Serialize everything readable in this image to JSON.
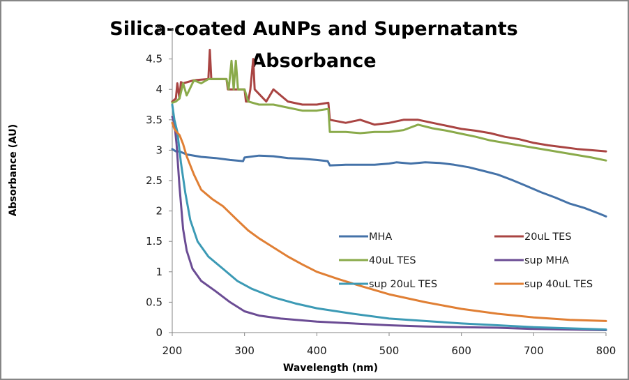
{
  "chart_data": {
    "type": "line",
    "title": "Silica-coated AuNPs and Supernatants Absorbance",
    "title_lines": [
      "Silica-coated AuNPs and Supernatants",
      "Absorbance"
    ],
    "xlabel": "Wavelength (nm)",
    "ylabel": "Absorbance (AU)",
    "xlim": [
      200,
      800
    ],
    "ylim": [
      0,
      5
    ],
    "x_ticks": [
      200,
      300,
      400,
      500,
      600,
      700,
      800
    ],
    "y_ticks": [
      0,
      0.5,
      1,
      1.5,
      2,
      2.5,
      3,
      3.5,
      4,
      4.5,
      5
    ],
    "x_tick_labels": [
      "200",
      "300",
      "400",
      "500",
      "600",
      "700",
      "800"
    ],
    "y_tick_labels": [
      "0",
      "0.5",
      "1",
      "1.5",
      "2",
      "2.5",
      "3",
      "3.5",
      "4",
      "4.5",
      "5"
    ],
    "grid": false,
    "legend_position": "center-right",
    "series": [
      {
        "name": "MHA",
        "color": "#4472a8",
        "points": [
          [
            200,
            3.02
          ],
          [
            205,
            2.98
          ],
          [
            210,
            2.98
          ],
          [
            220,
            2.93
          ],
          [
            240,
            2.89
          ],
          [
            260,
            2.87
          ],
          [
            280,
            2.84
          ],
          [
            298,
            2.82
          ],
          [
            300,
            2.88
          ],
          [
            320,
            2.91
          ],
          [
            340,
            2.9
          ],
          [
            360,
            2.87
          ],
          [
            380,
            2.86
          ],
          [
            400,
            2.84
          ],
          [
            415,
            2.82
          ],
          [
            418,
            2.75
          ],
          [
            440,
            2.76
          ],
          [
            460,
            2.76
          ],
          [
            480,
            2.76
          ],
          [
            500,
            2.78
          ],
          [
            510,
            2.8
          ],
          [
            530,
            2.78
          ],
          [
            550,
            2.8
          ],
          [
            570,
            2.79
          ],
          [
            590,
            2.76
          ],
          [
            610,
            2.72
          ],
          [
            630,
            2.66
          ],
          [
            650,
            2.6
          ],
          [
            670,
            2.51
          ],
          [
            690,
            2.41
          ],
          [
            710,
            2.31
          ],
          [
            730,
            2.22
          ],
          [
            750,
            2.12
          ],
          [
            770,
            2.05
          ],
          [
            790,
            1.96
          ],
          [
            800,
            1.91
          ]
        ]
      },
      {
        "name": "20uL TES",
        "color": "#a94442",
        "points": [
          [
            200,
            3.8
          ],
          [
            205,
            3.85
          ],
          [
            207,
            4.1
          ],
          [
            210,
            3.85
          ],
          [
            212,
            4.12
          ],
          [
            215,
            4.1
          ],
          [
            230,
            4.15
          ],
          [
            250,
            4.17
          ],
          [
            252,
            4.65
          ],
          [
            254,
            4.17
          ],
          [
            270,
            4.17
          ],
          [
            275,
            4.17
          ],
          [
            277,
            4.0
          ],
          [
            300,
            4.0
          ],
          [
            302,
            3.8
          ],
          [
            305,
            3.8
          ],
          [
            308,
            4.0
          ],
          [
            312,
            4.5
          ],
          [
            314,
            4.0
          ],
          [
            330,
            3.8
          ],
          [
            340,
            4.0
          ],
          [
            360,
            3.8
          ],
          [
            380,
            3.75
          ],
          [
            400,
            3.75
          ],
          [
            416,
            3.78
          ],
          [
            418,
            3.5
          ],
          [
            440,
            3.45
          ],
          [
            460,
            3.5
          ],
          [
            480,
            3.42
          ],
          [
            500,
            3.45
          ],
          [
            520,
            3.5
          ],
          [
            540,
            3.5
          ],
          [
            560,
            3.45
          ],
          [
            580,
            3.4
          ],
          [
            600,
            3.35
          ],
          [
            620,
            3.32
          ],
          [
            640,
            3.28
          ],
          [
            660,
            3.22
          ],
          [
            680,
            3.18
          ],
          [
            700,
            3.12
          ],
          [
            720,
            3.08
          ],
          [
            740,
            3.05
          ],
          [
            760,
            3.02
          ],
          [
            780,
            3.0
          ],
          [
            800,
            2.98
          ]
        ]
      },
      {
        "name": "40uL TES",
        "color": "#8aaa4a",
        "points": [
          [
            200,
            3.78
          ],
          [
            205,
            3.8
          ],
          [
            210,
            3.85
          ],
          [
            215,
            4.1
          ],
          [
            220,
            3.9
          ],
          [
            230,
            4.15
          ],
          [
            240,
            4.1
          ],
          [
            250,
            4.17
          ],
          [
            260,
            4.17
          ],
          [
            275,
            4.17
          ],
          [
            278,
            4.0
          ],
          [
            282,
            4.47
          ],
          [
            285,
            4.0
          ],
          [
            288,
            4.47
          ],
          [
            291,
            4.0
          ],
          [
            300,
            4.0
          ],
          [
            305,
            3.8
          ],
          [
            320,
            3.75
          ],
          [
            340,
            3.75
          ],
          [
            360,
            3.7
          ],
          [
            380,
            3.65
          ],
          [
            400,
            3.65
          ],
          [
            416,
            3.68
          ],
          [
            418,
            3.3
          ],
          [
            440,
            3.3
          ],
          [
            460,
            3.28
          ],
          [
            480,
            3.3
          ],
          [
            500,
            3.3
          ],
          [
            520,
            3.33
          ],
          [
            540,
            3.42
          ],
          [
            560,
            3.36
          ],
          [
            580,
            3.32
          ],
          [
            600,
            3.27
          ],
          [
            620,
            3.22
          ],
          [
            640,
            3.16
          ],
          [
            660,
            3.12
          ],
          [
            680,
            3.08
          ],
          [
            700,
            3.04
          ],
          [
            720,
            3.0
          ],
          [
            740,
            2.96
          ],
          [
            760,
            2.92
          ],
          [
            780,
            2.88
          ],
          [
            800,
            2.83
          ]
        ]
      },
      {
        "name": "sup MHA",
        "color": "#6b4c94",
        "points": [
          [
            200,
            3.55
          ],
          [
            203,
            3.45
          ],
          [
            206,
            3.1
          ],
          [
            210,
            2.4
          ],
          [
            215,
            1.7
          ],
          [
            220,
            1.35
          ],
          [
            228,
            1.05
          ],
          [
            240,
            0.85
          ],
          [
            260,
            0.68
          ],
          [
            280,
            0.5
          ],
          [
            300,
            0.35
          ],
          [
            320,
            0.28
          ],
          [
            350,
            0.23
          ],
          [
            400,
            0.18
          ],
          [
            450,
            0.15
          ],
          [
            500,
            0.12
          ],
          [
            550,
            0.1
          ],
          [
            600,
            0.09
          ],
          [
            650,
            0.08
          ],
          [
            700,
            0.06
          ],
          [
            750,
            0.05
          ],
          [
            800,
            0.04
          ]
        ]
      },
      {
        "name": "sup 20uL TES",
        "color": "#3c9ab5",
        "points": [
          [
            200,
            3.75
          ],
          [
            203,
            3.5
          ],
          [
            207,
            3.3
          ],
          [
            212,
            2.8
          ],
          [
            218,
            2.3
          ],
          [
            225,
            1.85
          ],
          [
            235,
            1.5
          ],
          [
            250,
            1.25
          ],
          [
            270,
            1.05
          ],
          [
            290,
            0.85
          ],
          [
            310,
            0.72
          ],
          [
            340,
            0.58
          ],
          [
            370,
            0.48
          ],
          [
            400,
            0.4
          ],
          [
            450,
            0.31
          ],
          [
            500,
            0.23
          ],
          [
            550,
            0.19
          ],
          [
            600,
            0.15
          ],
          [
            650,
            0.12
          ],
          [
            700,
            0.09
          ],
          [
            750,
            0.07
          ],
          [
            800,
            0.05
          ]
        ]
      },
      {
        "name": "sup 40uL TES",
        "color": "#e07f34",
        "points": [
          [
            200,
            3.45
          ],
          [
            203,
            3.35
          ],
          [
            206,
            3.3
          ],
          [
            210,
            3.25
          ],
          [
            215,
            3.1
          ],
          [
            220,
            2.9
          ],
          [
            230,
            2.6
          ],
          [
            240,
            2.35
          ],
          [
            255,
            2.2
          ],
          [
            270,
            2.08
          ],
          [
            290,
            1.85
          ],
          [
            305,
            1.68
          ],
          [
            320,
            1.55
          ],
          [
            340,
            1.4
          ],
          [
            360,
            1.25
          ],
          [
            380,
            1.12
          ],
          [
            400,
            1.0
          ],
          [
            430,
            0.88
          ],
          [
            460,
            0.77
          ],
          [
            500,
            0.63
          ],
          [
            550,
            0.5
          ],
          [
            600,
            0.39
          ],
          [
            650,
            0.31
          ],
          [
            700,
            0.25
          ],
          [
            750,
            0.21
          ],
          [
            800,
            0.19
          ]
        ]
      }
    ]
  }
}
